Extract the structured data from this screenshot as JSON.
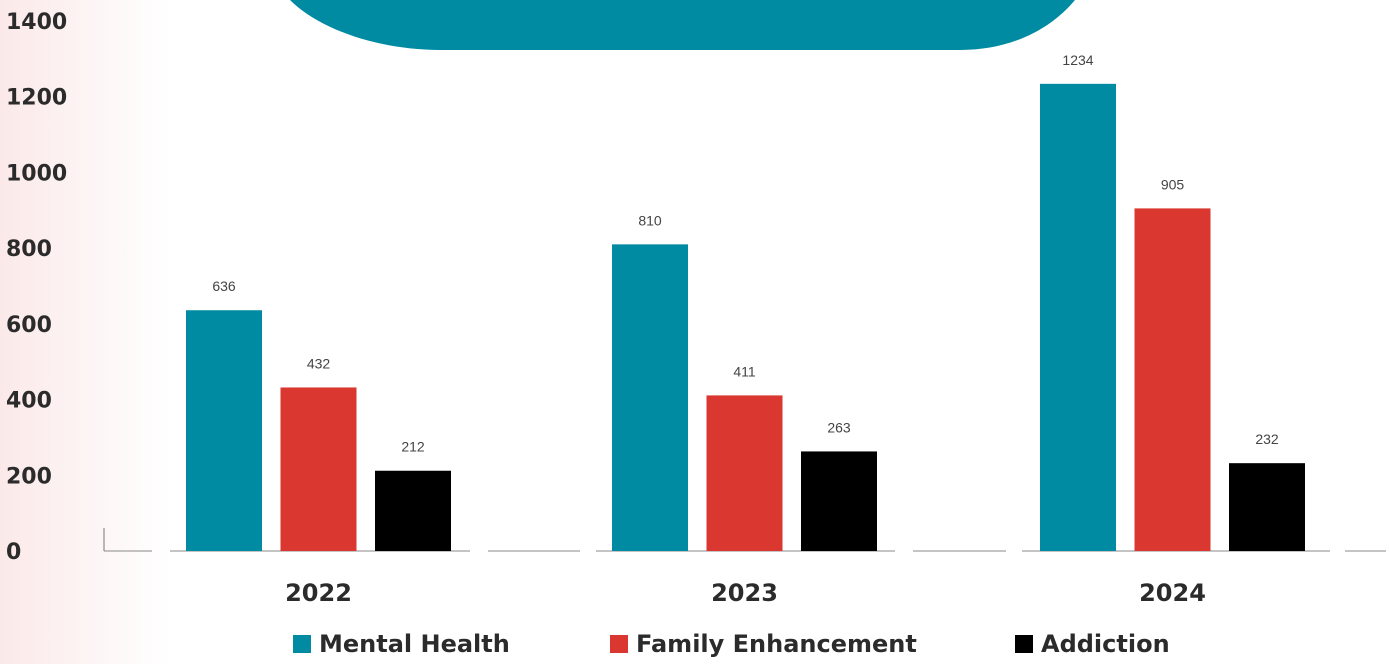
{
  "chart_data": {
    "type": "bar",
    "categories": [
      "2022",
      "2023",
      "2024"
    ],
    "series": [
      {
        "name": "Mental Health",
        "color": "#008ba3",
        "values": [
          636,
          810,
          1234
        ]
      },
      {
        "name": "Family Enhancement",
        "color": "#d9372f",
        "values": [
          432,
          411,
          905
        ]
      },
      {
        "name": "Addiction",
        "color": "#000000",
        "values": [
          212,
          263,
          232
        ]
      }
    ],
    "ylim": [
      0,
      1400
    ],
    "yticks": [
      0,
      200,
      400,
      600,
      800,
      1000,
      1200,
      1400
    ],
    "title": "",
    "xlabel": "",
    "ylabel": "",
    "grid": false,
    "legend_position": "bottom",
    "data_labels": true,
    "decoration_color": "#008ba3"
  }
}
